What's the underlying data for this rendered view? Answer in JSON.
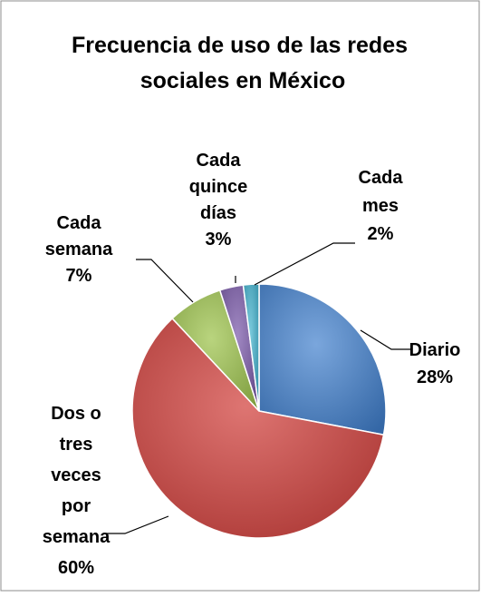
{
  "chart_data": {
    "type": "pie",
    "title_lines": [
      "Frecuencia de uso de las redes",
      "sociales en México"
    ],
    "slices": [
      {
        "label_lines": [
          "Diario"
        ],
        "percent_label": "28%",
        "value": 28,
        "color": "#4f81bd"
      },
      {
        "label_lines": [
          "Dos o",
          "tres",
          "veces",
          "por",
          "semana"
        ],
        "percent_label": "60%",
        "value": 60,
        "color": "#c0504d"
      },
      {
        "label_lines": [
          "Cada",
          "semana"
        ],
        "percent_label": "7%",
        "value": 7,
        "color": "#9bbb59"
      },
      {
        "label_lines": [
          "Cada",
          "quince",
          "días"
        ],
        "percent_label": "3%",
        "value": 3,
        "color": "#8064a2"
      },
      {
        "label_lines": [
          "Cada",
          "mes"
        ],
        "percent_label": "2%",
        "value": 2,
        "color": "#4bacc6"
      }
    ]
  }
}
